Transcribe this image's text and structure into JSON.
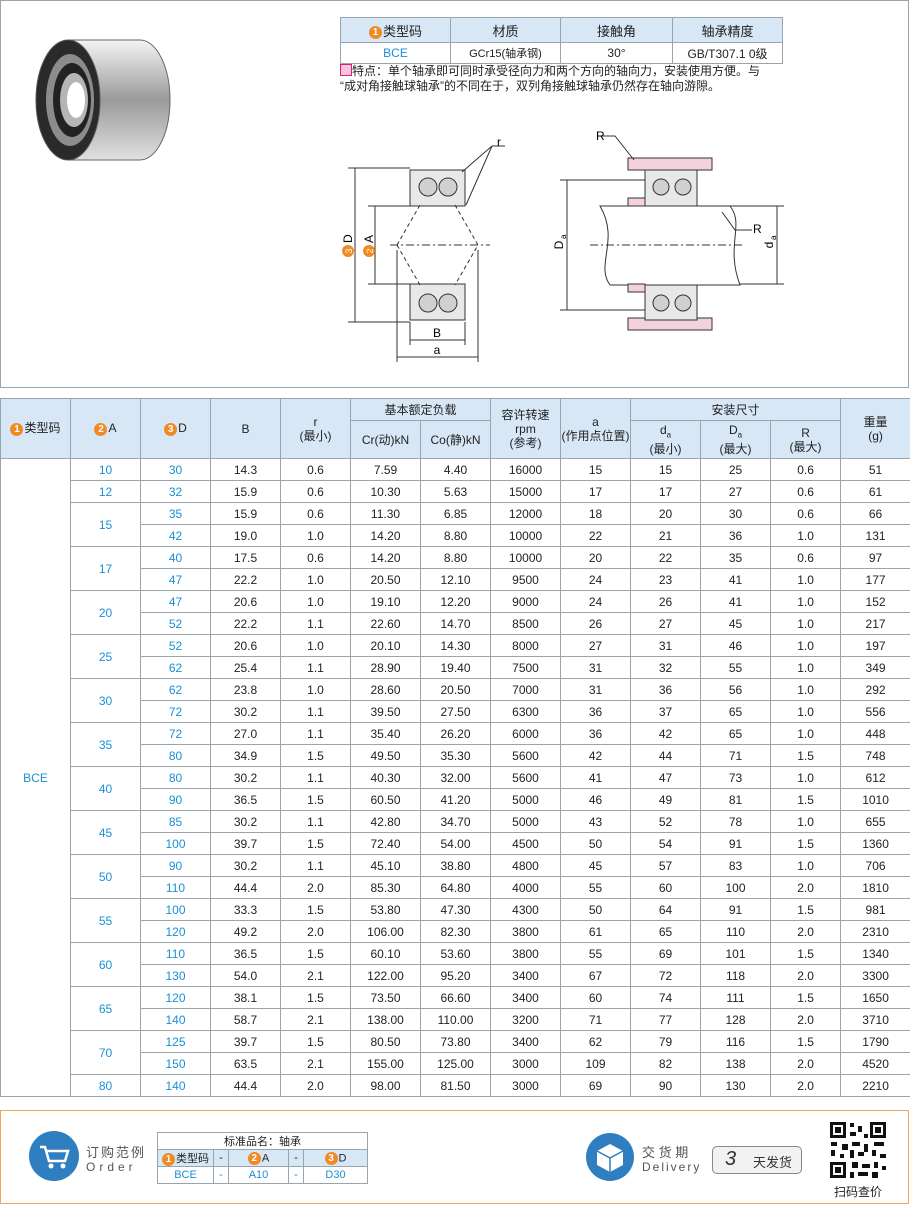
{
  "spec_table": {
    "headers": [
      {
        "badge": "1",
        "text": "类型码"
      },
      "材质",
      "接触角",
      "轴承精度"
    ],
    "row": [
      "BCE",
      "GCr15(轴承钢)",
      "30°",
      "GB/T307.1 0级"
    ]
  },
  "features": {
    "label": "特点：",
    "lines": [
      "单个轴承即可同时承受径向力和两个方向的轴向力，安装使用方便。与",
      "“成对角接触球轴承”的不同在于，双列角接触球轴承仍然存在轴向游隙。"
    ]
  },
  "drawing": {
    "left": {
      "r": "r",
      "D": {
        "badge": "3",
        "text": "D"
      },
      "A": {
        "badge": "2",
        "text": "A"
      },
      "B": "B",
      "a": "a"
    },
    "right": {
      "R_top": "R",
      "R_side": "R",
      "Da": {
        "main": "D",
        "sub": "a"
      },
      "da": {
        "main": "d",
        "sub": "a"
      }
    }
  },
  "table": {
    "headers": {
      "type": {
        "badge": "1",
        "text": "类型码"
      },
      "A": {
        "badge": "2",
        "text": "A"
      },
      "D": {
        "badge": "3",
        "text": "D"
      },
      "B": "B",
      "r": [
        "r",
        "(最小)"
      ],
      "load": "基本额定负载",
      "Cr": "Cr(动)kN",
      "Co": "Co(静)kN",
      "speed": [
        "容许转速",
        "rpm",
        "(参考)"
      ],
      "a": [
        "a",
        "(作用点位置)"
      ],
      "mount": "安装尺寸",
      "da": {
        "main": "d",
        "sub": "a",
        "note": "(最小)"
      },
      "Da": {
        "main": "D",
        "sub": "a",
        "note": "(最大)"
      },
      "R": [
        "R",
        "(最大)"
      ],
      "weight": [
        "重量",
        "(g)"
      ]
    },
    "type_code": "BCE",
    "groups": [
      {
        "A": "10",
        "rows": [
          [
            "30",
            "14.3",
            "0.6",
            "7.59",
            "4.40",
            "16000",
            "15",
            "15",
            "25",
            "0.6",
            "51"
          ]
        ]
      },
      {
        "A": "12",
        "rows": [
          [
            "32",
            "15.9",
            "0.6",
            "10.30",
            "5.63",
            "15000",
            "17",
            "17",
            "27",
            "0.6",
            "61"
          ]
        ]
      },
      {
        "A": "15",
        "rows": [
          [
            "35",
            "15.9",
            "0.6",
            "11.30",
            "6.85",
            "12000",
            "18",
            "20",
            "30",
            "0.6",
            "66"
          ],
          [
            "42",
            "19.0",
            "1.0",
            "14.20",
            "8.80",
            "10000",
            "22",
            "21",
            "36",
            "1.0",
            "131"
          ]
        ]
      },
      {
        "A": "17",
        "rows": [
          [
            "40",
            "17.5",
            "0.6",
            "14.20",
            "8.80",
            "10000",
            "20",
            "22",
            "35",
            "0.6",
            "97"
          ],
          [
            "47",
            "22.2",
            "1.0",
            "20.50",
            "12.10",
            "9500",
            "24",
            "23",
            "41",
            "1.0",
            "177"
          ]
        ]
      },
      {
        "A": "20",
        "rows": [
          [
            "47",
            "20.6",
            "1.0",
            "19.10",
            "12.20",
            "9000",
            "24",
            "26",
            "41",
            "1.0",
            "152"
          ],
          [
            "52",
            "22.2",
            "1.1",
            "22.60",
            "14.70",
            "8500",
            "26",
            "27",
            "45",
            "1.0",
            "217"
          ]
        ]
      },
      {
        "A": "25",
        "rows": [
          [
            "52",
            "20.6",
            "1.0",
            "20.10",
            "14.30",
            "8000",
            "27",
            "31",
            "46",
            "1.0",
            "197"
          ],
          [
            "62",
            "25.4",
            "1.1",
            "28.90",
            "19.40",
            "7500",
            "31",
            "32",
            "55",
            "1.0",
            "349"
          ]
        ]
      },
      {
        "A": "30",
        "rows": [
          [
            "62",
            "23.8",
            "1.0",
            "28.60",
            "20.50",
            "7000",
            "31",
            "36",
            "56",
            "1.0",
            "292"
          ],
          [
            "72",
            "30.2",
            "1.1",
            "39.50",
            "27.50",
            "6300",
            "36",
            "37",
            "65",
            "1.0",
            "556"
          ]
        ]
      },
      {
        "A": "35",
        "rows": [
          [
            "72",
            "27.0",
            "1.1",
            "35.40",
            "26.20",
            "6000",
            "36",
            "42",
            "65",
            "1.0",
            "448"
          ],
          [
            "80",
            "34.9",
            "1.5",
            "49.50",
            "35.30",
            "5600",
            "42",
            "44",
            "71",
            "1.5",
            "748"
          ]
        ]
      },
      {
        "A": "40",
        "rows": [
          [
            "80",
            "30.2",
            "1.1",
            "40.30",
            "32.00",
            "5600",
            "41",
            "47",
            "73",
            "1.0",
            "612"
          ],
          [
            "90",
            "36.5",
            "1.5",
            "60.50",
            "41.20",
            "5000",
            "46",
            "49",
            "81",
            "1.5",
            "1010"
          ]
        ]
      },
      {
        "A": "45",
        "rows": [
          [
            "85",
            "30.2",
            "1.1",
            "42.80",
            "34.70",
            "5000",
            "43",
            "52",
            "78",
            "1.0",
            "655"
          ],
          [
            "100",
            "39.7",
            "1.5",
            "72.40",
            "54.00",
            "4500",
            "50",
            "54",
            "91",
            "1.5",
            "1360"
          ]
        ]
      },
      {
        "A": "50",
        "rows": [
          [
            "90",
            "30.2",
            "1.1",
            "45.10",
            "38.80",
            "4800",
            "45",
            "57",
            "83",
            "1.0",
            "706"
          ],
          [
            "110",
            "44.4",
            "2.0",
            "85.30",
            "64.80",
            "4000",
            "55",
            "60",
            "100",
            "2.0",
            "1810"
          ]
        ]
      },
      {
        "A": "55",
        "rows": [
          [
            "100",
            "33.3",
            "1.5",
            "53.80",
            "47.30",
            "4300",
            "50",
            "64",
            "91",
            "1.5",
            "981"
          ],
          [
            "120",
            "49.2",
            "2.0",
            "106.00",
            "82.30",
            "3800",
            "61",
            "65",
            "110",
            "2.0",
            "2310"
          ]
        ]
      },
      {
        "A": "60",
        "rows": [
          [
            "110",
            "36.5",
            "1.5",
            "60.10",
            "53.60",
            "3800",
            "55",
            "69",
            "101",
            "1.5",
            "1340"
          ],
          [
            "130",
            "54.0",
            "2.1",
            "122.00",
            "95.20",
            "3400",
            "67",
            "72",
            "118",
            "2.0",
            "3300"
          ]
        ]
      },
      {
        "A": "65",
        "rows": [
          [
            "120",
            "38.1",
            "1.5",
            "73.50",
            "66.60",
            "3400",
            "60",
            "74",
            "111",
            "1.5",
            "1650"
          ],
          [
            "140",
            "58.7",
            "2.1",
            "138.00",
            "110.00",
            "3200",
            "71",
            "77",
            "128",
            "2.0",
            "3710"
          ]
        ]
      },
      {
        "A": "70",
        "rows": [
          [
            "125",
            "39.7",
            "1.5",
            "80.50",
            "73.80",
            "3400",
            "62",
            "79",
            "116",
            "1.5",
            "1790"
          ],
          [
            "150",
            "63.5",
            "2.1",
            "155.00",
            "125.00",
            "3000",
            "109",
            "82",
            "138",
            "2.0",
            "4520"
          ]
        ]
      },
      {
        "A": "80",
        "rows": [
          [
            "140",
            "44.4",
            "2.0",
            "98.00",
            "81.50",
            "3000",
            "69",
            "90",
            "130",
            "2.0",
            "2210"
          ]
        ]
      }
    ]
  },
  "order": {
    "title": "订购范例",
    "subtitle": "Order",
    "product_name": "标准品名：轴承",
    "headers": [
      {
        "badge": "1",
        "text": "类型码"
      },
      "-",
      {
        "badge": "2",
        "text": "A"
      },
      "-",
      {
        "badge": "3",
        "text": "D"
      }
    ],
    "values": [
      "BCE",
      "-",
      "A10",
      "-",
      "D30"
    ]
  },
  "delivery": {
    "title": "交 货 期",
    "subtitle": "Delivery",
    "days": "3",
    "text": "天发货"
  },
  "qr": {
    "caption": "扫码查价"
  }
}
